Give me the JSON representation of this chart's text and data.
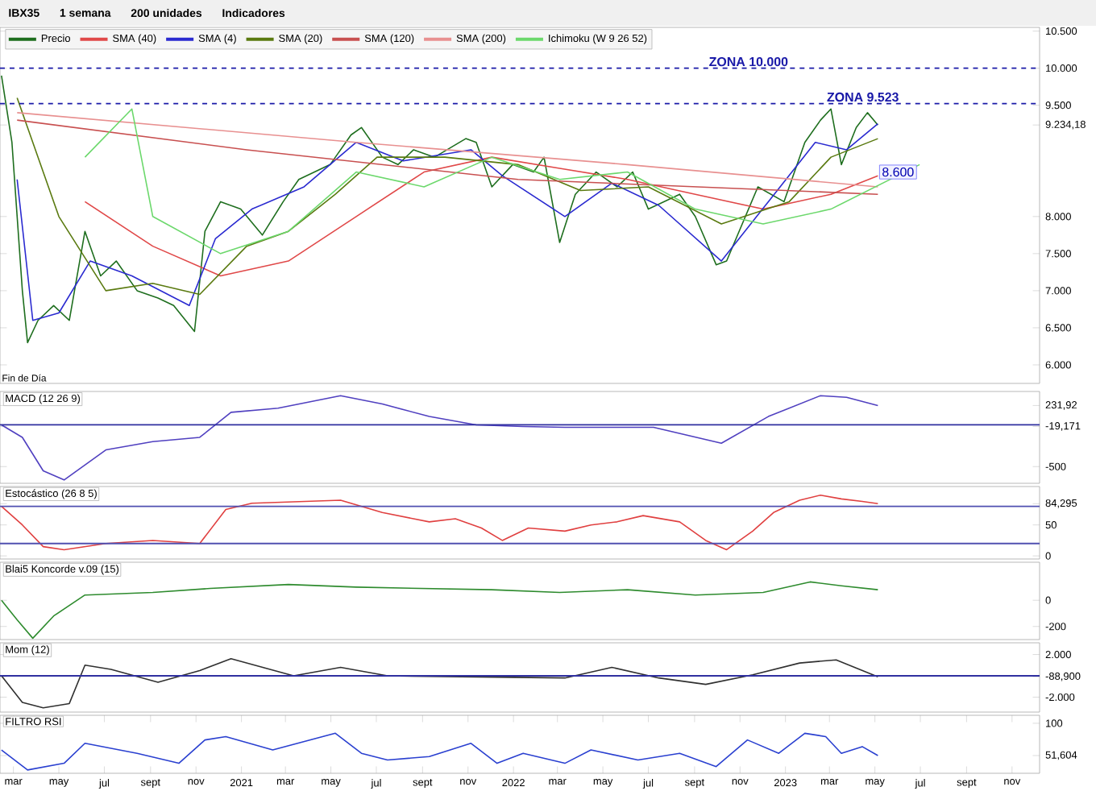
{
  "chart_data": [
    {
      "type": "line",
      "title": "IBX35",
      "subtitle": "Fin de Día",
      "annotations": [
        "1 semana",
        "200 unidades",
        "Indicadores",
        {
          "text": "8.600",
          "x": "2023-06-01",
          "y": 8600
        }
      ],
      "xlim": [
        "2020-02-12",
        "2023-12-08"
      ],
      "ylim": [
        5750,
        10550
      ],
      "tick_labels": "y",
      "legend": "top left",
      "yticks": [
        {
          "value": 6000,
          "label": "6.000"
        },
        {
          "value": 6500,
          "label": "6.500"
        },
        {
          "value": 7000,
          "label": "7.000"
        },
        {
          "value": 7500,
          "label": "7.500"
        },
        {
          "value": 8000,
          "label": "8.000"
        },
        {
          "value": 9234.18,
          "label": "9.234,18"
        },
        {
          "value": 9500,
          "label": "9.500"
        },
        {
          "value": 10000,
          "label": "10.000"
        },
        {
          "value": 10500,
          "label": "10.500"
        }
      ],
      "ref_lines": [
        {
          "axis": "y",
          "value": 10000,
          "label": "ZONA 10.000",
          "color": "#1a1aa8",
          "line_style": "dashed"
        },
        {
          "axis": "y",
          "value": 9523,
          "label": "ZONA 9.523",
          "color": "#1a1aa8",
          "line_style": "dashed"
        }
      ],
      "series": [
        {
          "name": "Precio",
          "color": "#1e6e1e",
          "x": [
            "2020-02-14",
            "2020-02-28",
            "2020-03-13",
            "2020-03-20",
            "2020-04-03",
            "2020-04-24",
            "2020-05-15",
            "2020-06-05",
            "2020-06-26",
            "2020-07-17",
            "2020-08-14",
            "2020-09-11",
            "2020-10-02",
            "2020-10-30",
            "2020-11-13",
            "2020-12-04",
            "2020-12-31",
            "2021-01-29",
            "2021-02-26",
            "2021-03-19",
            "2021-04-30",
            "2021-05-28",
            "2021-06-11",
            "2021-07-09",
            "2021-07-30",
            "2021-08-20",
            "2021-09-17",
            "2021-10-29",
            "2021-11-12",
            "2021-12-03",
            "2021-12-31",
            "2022-01-28",
            "2022-02-11",
            "2022-03-04",
            "2022-03-25",
            "2022-04-22",
            "2022-05-20",
            "2022-06-10",
            "2022-07-01",
            "2022-08-12",
            "2022-09-02",
            "2022-09-30",
            "2022-10-14",
            "2022-11-04",
            "2022-11-25",
            "2022-12-30",
            "2023-01-27",
            "2023-02-17",
            "2023-03-03",
            "2023-03-17",
            "2023-04-06",
            "2023-04-21",
            "2023-05-05"
          ],
          "values": [
            9900,
            9000,
            7000,
            6300,
            6600,
            6800,
            6600,
            7800,
            7200,
            7400,
            7000,
            6900,
            6800,
            6450,
            7800,
            8200,
            8100,
            7750,
            8200,
            8500,
            8700,
            9100,
            9200,
            8800,
            8700,
            8900,
            8800,
            9050,
            9000,
            8400,
            8700,
            8600,
            8800,
            7650,
            8300,
            8600,
            8400,
            8600,
            8100,
            8300,
            8000,
            7350,
            7400,
            7900,
            8400,
            8200,
            9000,
            9300,
            9450,
            8700,
            9200,
            9400,
            9234
          ]
        },
        {
          "name": "SMA (40)",
          "color": "#e04848",
          "x": [
            "2020-06-05",
            "2020-09-04",
            "2020-12-04",
            "2021-03-05",
            "2021-06-04",
            "2021-09-03",
            "2021-12-03",
            "2022-03-04",
            "2022-06-03",
            "2022-09-02",
            "2022-12-02",
            "2023-03-03",
            "2023-05-05"
          ],
          "values": [
            8200,
            7600,
            7200,
            7400,
            8000,
            8600,
            8800,
            8650,
            8500,
            8300,
            8100,
            8300,
            8550
          ]
        },
        {
          "name": "SMA (4)",
          "color": "#2a2ad0",
          "x": [
            "2020-03-06",
            "2020-03-27",
            "2020-05-01",
            "2020-06-12",
            "2020-08-07",
            "2020-10-23",
            "2020-11-27",
            "2021-01-15",
            "2021-03-26",
            "2021-06-04",
            "2021-08-06",
            "2021-11-05",
            "2021-12-17",
            "2022-03-11",
            "2022-05-13",
            "2022-07-15",
            "2022-10-07",
            "2022-12-09",
            "2023-02-10",
            "2023-03-24",
            "2023-05-05"
          ],
          "values": [
            8500,
            6600,
            6700,
            7400,
            7200,
            6800,
            7700,
            8100,
            8400,
            9000,
            8750,
            8900,
            8550,
            8000,
            8450,
            8150,
            7400,
            8200,
            9000,
            8900,
            9250
          ]
        },
        {
          "name": "SMA (20)",
          "color": "#5a7a10",
          "x": [
            "2020-03-06",
            "2020-05-01",
            "2020-07-03",
            "2020-09-04",
            "2020-11-06",
            "2021-01-08",
            "2021-03-05",
            "2021-05-07",
            "2021-07-02",
            "2021-10-01",
            "2022-01-07",
            "2022-04-01",
            "2022-07-01",
            "2022-10-07",
            "2023-01-06",
            "2023-03-03",
            "2023-05-05"
          ],
          "values": [
            9600,
            8000,
            7000,
            7100,
            6950,
            7600,
            7800,
            8300,
            8800,
            8800,
            8700,
            8350,
            8400,
            7900,
            8200,
            8800,
            9050
          ]
        },
        {
          "name": "SMA (120)",
          "color": "#c85050",
          "x": [
            "2020-03-06",
            "2021-01-08",
            "2022-01-07",
            "2023-05-05"
          ],
          "values": [
            9300,
            8900,
            8500,
            8300
          ]
        },
        {
          "name": "SMA (200)",
          "color": "#e89090",
          "x": [
            "2020-03-06",
            "2021-06-04",
            "2022-06-03",
            "2023-05-05"
          ],
          "values": [
            9400,
            9000,
            8700,
            8400
          ]
        },
        {
          "name": "Ichimoku (W 9 26 52)",
          "color": "#6cd86c",
          "x": [
            "2020-06-05",
            "2020-08-07",
            "2020-09-04",
            "2020-12-04",
            "2021-03-05",
            "2021-06-04",
            "2021-09-03",
            "2021-12-03",
            "2022-03-04",
            "2022-06-03",
            "2022-09-02",
            "2022-12-02",
            "2023-03-03",
            "2023-06-30"
          ],
          "values": [
            8800,
            9450,
            8000,
            7500,
            7800,
            8600,
            8400,
            8800,
            8500,
            8600,
            8100,
            7900,
            8100,
            8700
          ]
        }
      ]
    },
    {
      "type": "line",
      "title": "MACD (12 26 9)",
      "xlim": [
        "2020-02-12",
        "2023-12-08"
      ],
      "ylim": [
        -700,
        400
      ],
      "tick_labels": "y",
      "yticks": [
        {
          "value": -500,
          "label": "-500"
        },
        {
          "value": -19.171,
          "label": "-19,171"
        },
        {
          "value": 231.92,
          "label": "231,92"
        }
      ],
      "ref_lines": [
        {
          "axis": "y",
          "value": 0,
          "color": "#3030a0"
        }
      ],
      "series": [
        {
          "color": "#5040c0",
          "x": [
            "2020-02-14",
            "2020-03-13",
            "2020-04-10",
            "2020-05-08",
            "2020-07-03",
            "2020-09-04",
            "2020-11-06",
            "2020-12-18",
            "2021-02-19",
            "2021-05-14",
            "2021-07-09",
            "2021-09-10",
            "2021-11-12",
            "2022-01-14",
            "2022-03-11",
            "2022-07-08",
            "2022-10-07",
            "2022-12-09",
            "2023-02-17",
            "2023-03-24",
            "2023-05-05"
          ],
          "values": [
            0,
            -150,
            -550,
            -660,
            -300,
            -200,
            -150,
            150,
            200,
            350,
            250,
            100,
            0,
            -20,
            -30,
            -30,
            -220,
            100,
            350,
            330,
            231.92
          ]
        }
      ]
    },
    {
      "type": "line",
      "title": "Estocástico (26 8 5)",
      "xlim": [
        "2020-02-12",
        "2023-12-08"
      ],
      "ylim": [
        -5,
        112
      ],
      "tick_labels": "y",
      "yticks": [
        0,
        50,
        {
          "value": 84.295,
          "label": "84,295"
        }
      ],
      "ref_lines": [
        {
          "axis": "y",
          "value": 80,
          "color": "#5050b0"
        },
        {
          "axis": "y",
          "value": 20,
          "color": "#5050b0"
        }
      ],
      "series": [
        {
          "color": "#e04040",
          "x": [
            "2020-02-14",
            "2020-03-13",
            "2020-04-10",
            "2020-05-08",
            "2020-07-03",
            "2020-09-04",
            "2020-11-06",
            "2020-12-11",
            "2021-01-15",
            "2021-05-14",
            "2021-07-09",
            "2021-09-10",
            "2021-10-15",
            "2021-11-19",
            "2021-12-17",
            "2022-01-21",
            "2022-03-11",
            "2022-04-15",
            "2022-05-20",
            "2022-06-24",
            "2022-08-12",
            "2022-09-16",
            "2022-10-14",
            "2022-11-18",
            "2022-12-16",
            "2023-01-20",
            "2023-02-17",
            "2023-03-17",
            "2023-04-14",
            "2023-05-05"
          ],
          "values": [
            80,
            50,
            15,
            10,
            20,
            25,
            20,
            75,
            85,
            90,
            70,
            55,
            60,
            45,
            25,
            45,
            40,
            50,
            55,
            65,
            55,
            25,
            10,
            40,
            70,
            90,
            98,
            92,
            88,
            84.295
          ]
        }
      ]
    },
    {
      "type": "line",
      "title": "Blai5 Koncorde v.09 (15)",
      "xlim": [
        "2020-02-12",
        "2023-12-08"
      ],
      "ylim": [
        -300,
        290
      ],
      "tick_labels": "y",
      "yticks": [
        -200,
        0
      ],
      "series": [
        {
          "color": "#2e8b2e",
          "x": [
            "2020-02-14",
            "2020-03-06",
            "2020-03-27",
            "2020-04-24",
            "2020-06-05",
            "2020-09-04",
            "2020-11-20",
            "2021-03-05",
            "2021-06-04",
            "2021-09-03",
            "2021-12-03",
            "2022-03-04",
            "2022-06-03",
            "2022-09-02",
            "2022-12-02",
            "2023-02-03",
            "2023-03-17",
            "2023-05-05"
          ],
          "values": [
            0,
            -150,
            -290,
            -120,
            40,
            60,
            90,
            120,
            100,
            90,
            80,
            60,
            80,
            40,
            60,
            140,
            110,
            80
          ]
        }
      ]
    },
    {
      "type": "line",
      "title": "Mom (12)",
      "xlim": [
        "2020-02-12",
        "2023-12-08"
      ],
      "ylim": [
        -3400,
        3100
      ],
      "tick_labels": "y",
      "yticks": [
        {
          "value": -2000,
          "label": "-2.000"
        },
        {
          "value": -88.9,
          "label": "-88,900"
        },
        {
          "value": 2000,
          "label": "2.000"
        }
      ],
      "ref_lines": [
        {
          "axis": "y",
          "value": 0,
          "color": "#3030a0"
        }
      ],
      "series": [
        {
          "color": "#303030",
          "x": [
            "2020-02-14",
            "2020-03-13",
            "2020-04-10",
            "2020-05-15",
            "2020-06-05",
            "2020-07-10",
            "2020-09-11",
            "2020-11-06",
            "2020-12-18",
            "2021-03-12",
            "2021-05-14",
            "2021-07-16",
            "2022-03-11",
            "2022-05-13",
            "2022-07-15",
            "2022-09-16",
            "2022-11-18",
            "2023-01-20",
            "2023-03-10",
            "2023-05-05"
          ],
          "values": [
            0,
            -2500,
            -3000,
            -2600,
            1000,
            600,
            -600,
            500,
            1600,
            0,
            800,
            0,
            -200,
            800,
            -200,
            -800,
            100,
            1200,
            1500,
            -88.9
          ]
        }
      ]
    },
    {
      "type": "line",
      "title": "FILTRO RSI",
      "xlim": [
        "2020-02-12",
        "2023-12-08"
      ],
      "ylim": [
        25,
        112
      ],
      "yticks": [
        {
          "value": 51.604,
          "label": "51,604"
        },
        100
      ],
      "xticks": [
        {
          "value": "2020-03-01",
          "label": "mar"
        },
        {
          "value": "2020-05-01",
          "label": "may"
        },
        {
          "value": "2020-07-01",
          "label": "jul"
        },
        {
          "value": "2020-09-01",
          "label": "sept"
        },
        {
          "value": "2020-11-01",
          "label": "nov"
        },
        {
          "value": "2021-01-01",
          "label": "2021"
        },
        {
          "value": "2021-03-01",
          "label": "mar"
        },
        {
          "value": "2021-05-01",
          "label": "may"
        },
        {
          "value": "2021-07-01",
          "label": "jul"
        },
        {
          "value": "2021-09-01",
          "label": "sept"
        },
        {
          "value": "2021-11-01",
          "label": "nov"
        },
        {
          "value": "2022-01-01",
          "label": "2022"
        },
        {
          "value": "2022-03-01",
          "label": "mar"
        },
        {
          "value": "2022-05-01",
          "label": "may"
        },
        {
          "value": "2022-07-01",
          "label": "jul"
        },
        {
          "value": "2022-09-01",
          "label": "sept"
        },
        {
          "value": "2022-11-01",
          "label": "nov"
        },
        {
          "value": "2023-01-01",
          "label": "2023"
        },
        {
          "value": "2023-03-01",
          "label": "mar"
        },
        {
          "value": "2023-05-01",
          "label": "may"
        },
        {
          "value": "2023-07-01",
          "label": "jul"
        },
        {
          "value": "2023-09-01",
          "label": "sept"
        },
        {
          "value": "2023-11-01",
          "label": "nov"
        }
      ],
      "series": [
        {
          "color": "#2a40d0",
          "x": [
            "2020-02-14",
            "2020-03-20",
            "2020-05-08",
            "2020-06-05",
            "2020-08-14",
            "2020-10-09",
            "2020-11-13",
            "2020-12-11",
            "2021-02-12",
            "2021-05-07",
            "2021-06-11",
            "2021-07-16",
            "2021-09-10",
            "2021-11-05",
            "2021-12-10",
            "2022-01-14",
            "2022-03-11",
            "2022-04-15",
            "2022-06-17",
            "2022-08-12",
            "2022-09-30",
            "2022-11-11",
            "2022-12-23",
            "2023-01-27",
            "2023-02-24",
            "2023-03-17",
            "2023-04-14",
            "2023-05-05"
          ],
          "values": [
            60,
            30,
            40,
            70,
            55,
            40,
            75,
            80,
            60,
            85,
            55,
            45,
            50,
            70,
            40,
            55,
            40,
            60,
            45,
            55,
            35,
            75,
            55,
            85,
            80,
            55,
            65,
            51.604
          ]
        }
      ]
    }
  ]
}
